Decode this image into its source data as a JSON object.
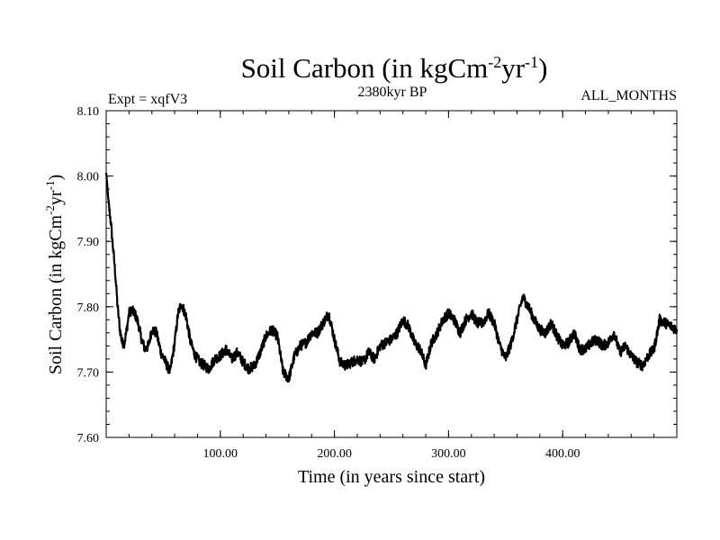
{
  "chart_data": {
    "type": "line",
    "title": {
      "main": "Soil Carbon (in kgCm",
      "sup1": "-2",
      "mid": "yr",
      "sup2": "-1",
      "end": ")"
    },
    "experiment_label": "Expt = xqfV3",
    "period_label": "2380kyr BP",
    "months_label": "ALL_MONTHS",
    "xlabel": "Time (in years since start)",
    "ylabel": {
      "main": "Soil Carbon (in kgCm",
      "sup1": "-2",
      "mid": "yr",
      "sup2": "-1",
      "end": ")"
    },
    "xlim": [
      0,
      500
    ],
    "ylim": [
      7.6,
      8.1
    ],
    "x_ticks": [
      {
        "value": 100,
        "label": "100.00"
      },
      {
        "value": 200,
        "label": "200.00"
      },
      {
        "value": 300,
        "label": "300.00"
      },
      {
        "value": 400,
        "label": "400.00"
      }
    ],
    "y_ticks": [
      {
        "value": 7.6,
        "label": "7.60"
      },
      {
        "value": 7.7,
        "label": "7.70"
      },
      {
        "value": 7.8,
        "label": "7.80"
      },
      {
        "value": 7.9,
        "label": "7.90"
      },
      {
        "value": 8.0,
        "label": "8.00"
      },
      {
        "value": 8.1,
        "label": "8.10"
      }
    ],
    "series": [
      {
        "name": "Soil Carbon",
        "color": "#000000",
        "noise_amplitude": 0.008,
        "x": [
          0,
          1,
          2,
          4,
          6,
          8,
          10,
          12,
          14,
          16,
          18,
          20,
          22,
          25,
          28,
          31,
          34,
          37,
          40,
          44,
          48,
          52,
          56,
          60,
          63,
          66,
          70,
          74,
          78,
          82,
          86,
          90,
          95,
          100,
          105,
          110,
          115,
          120,
          125,
          130,
          135,
          140,
          145,
          150,
          155,
          160,
          165,
          170,
          175,
          180,
          185,
          190,
          195,
          200,
          205,
          210,
          215,
          220,
          225,
          230,
          235,
          240,
          245,
          250,
          255,
          260,
          265,
          270,
          275,
          280,
          285,
          290,
          295,
          300,
          305,
          310,
          315,
          320,
          325,
          330,
          335,
          340,
          345,
          350,
          355,
          360,
          365,
          370,
          375,
          380,
          385,
          390,
          395,
          400,
          405,
          410,
          415,
          420,
          425,
          430,
          435,
          440,
          445,
          450,
          455,
          460,
          465,
          470,
          475,
          480,
          485,
          490,
          495,
          500
        ],
        "y": [
          8.005,
          7.985,
          7.96,
          7.93,
          7.89,
          7.85,
          7.8,
          7.765,
          7.745,
          7.745,
          7.765,
          7.79,
          7.795,
          7.79,
          7.775,
          7.75,
          7.735,
          7.74,
          7.765,
          7.76,
          7.73,
          7.715,
          7.7,
          7.745,
          7.79,
          7.805,
          7.785,
          7.745,
          7.725,
          7.715,
          7.71,
          7.705,
          7.72,
          7.725,
          7.735,
          7.72,
          7.73,
          7.715,
          7.705,
          7.71,
          7.73,
          7.755,
          7.765,
          7.755,
          7.7,
          7.69,
          7.725,
          7.74,
          7.745,
          7.76,
          7.76,
          7.775,
          7.79,
          7.75,
          7.715,
          7.71,
          7.715,
          7.72,
          7.715,
          7.73,
          7.72,
          7.74,
          7.745,
          7.75,
          7.76,
          7.78,
          7.77,
          7.745,
          7.735,
          7.71,
          7.745,
          7.76,
          7.78,
          7.79,
          7.78,
          7.76,
          7.78,
          7.79,
          7.775,
          7.775,
          7.79,
          7.775,
          7.74,
          7.72,
          7.745,
          7.78,
          7.815,
          7.8,
          7.78,
          7.765,
          7.76,
          7.775,
          7.755,
          7.74,
          7.745,
          7.76,
          7.735,
          7.735,
          7.745,
          7.75,
          7.74,
          7.745,
          7.76,
          7.73,
          7.74,
          7.725,
          7.715,
          7.71,
          7.725,
          7.735,
          7.78,
          7.775,
          7.77,
          7.765
        ]
      }
    ]
  }
}
